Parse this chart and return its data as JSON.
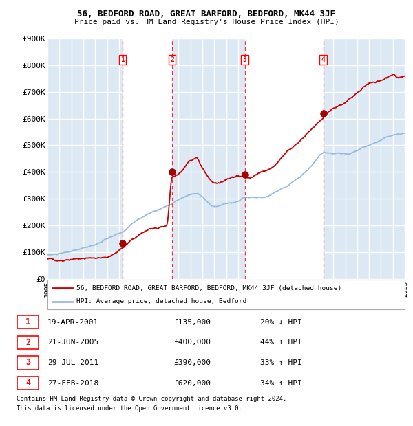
{
  "title": "56, BEDFORD ROAD, GREAT BARFORD, BEDFORD, MK44 3JF",
  "subtitle": "Price paid vs. HM Land Registry's House Price Index (HPI)",
  "x_start_year": 1995,
  "x_end_year": 2025,
  "y_min": 0,
  "y_max": 900000,
  "y_ticks": [
    0,
    100000,
    200000,
    300000,
    400000,
    500000,
    600000,
    700000,
    800000,
    900000
  ],
  "y_tick_labels": [
    "£0",
    "£100K",
    "£200K",
    "£300K",
    "£400K",
    "£500K",
    "£600K",
    "£700K",
    "£800K",
    "£900K"
  ],
  "sale_color": "#cc0000",
  "hpi_color": "#99bbdd",
  "band_color": "#dce9f5",
  "grid_color": "#ffffff",
  "sale_points": [
    {
      "year": 2001.3,
      "price": 135000,
      "label": "1"
    },
    {
      "year": 2005.47,
      "price": 400000,
      "label": "2"
    },
    {
      "year": 2011.57,
      "price": 390000,
      "label": "3"
    },
    {
      "year": 2018.16,
      "price": 620000,
      "label": "4"
    }
  ],
  "vline_years": [
    2001.3,
    2005.47,
    2011.57,
    2018.16
  ],
  "legend_entries": [
    "56, BEDFORD ROAD, GREAT BARFORD, BEDFORD, MK44 3JF (detached house)",
    "HPI: Average price, detached house, Bedford"
  ],
  "table_rows": [
    {
      "num": "1",
      "date": "19-APR-2001",
      "price": "£135,000",
      "hpi": "20% ↓ HPI"
    },
    {
      "num": "2",
      "date": "21-JUN-2005",
      "price": "£400,000",
      "hpi": "44% ↑ HPI"
    },
    {
      "num": "3",
      "date": "29-JUL-2011",
      "price": "£390,000",
      "hpi": "33% ↑ HPI"
    },
    {
      "num": "4",
      "date": "27-FEB-2018",
      "price": "£620,000",
      "hpi": "34% ↑ HPI"
    }
  ],
  "footnote1": "Contains HM Land Registry data © Crown copyright and database right 2024.",
  "footnote2": "This data is licensed under the Open Government Licence v3.0.",
  "hpi_keypoints": [
    [
      1995.0,
      90000
    ],
    [
      1996.0,
      93000
    ],
    [
      1997.0,
      100000
    ],
    [
      1998.0,
      110000
    ],
    [
      1999.0,
      125000
    ],
    [
      2000.0,
      145000
    ],
    [
      2001.3,
      168000
    ],
    [
      2002.0,
      195000
    ],
    [
      2003.0,
      225000
    ],
    [
      2004.0,
      248000
    ],
    [
      2005.47,
      277000
    ],
    [
      2006.0,
      290000
    ],
    [
      2007.0,
      305000
    ],
    [
      2007.5,
      310000
    ],
    [
      2008.0,
      295000
    ],
    [
      2009.0,
      258000
    ],
    [
      2010.0,
      270000
    ],
    [
      2011.0,
      280000
    ],
    [
      2011.57,
      293000
    ],
    [
      2012.0,
      295000
    ],
    [
      2013.0,
      295000
    ],
    [
      2014.0,
      310000
    ],
    [
      2015.0,
      340000
    ],
    [
      2016.0,
      370000
    ],
    [
      2017.0,
      410000
    ],
    [
      2018.16,
      461000
    ],
    [
      2019.0,
      455000
    ],
    [
      2020.0,
      455000
    ],
    [
      2021.0,
      470000
    ],
    [
      2022.0,
      490000
    ],
    [
      2023.0,
      510000
    ],
    [
      2024.0,
      530000
    ],
    [
      2025.0,
      540000
    ]
  ],
  "sale_keypoints": [
    [
      1995.0,
      75000
    ],
    [
      1996.0,
      78000
    ],
    [
      1997.0,
      84000
    ],
    [
      1998.0,
      92000
    ],
    [
      1999.0,
      98000
    ],
    [
      2000.0,
      100000
    ],
    [
      2001.3,
      135000
    ],
    [
      2002.0,
      165000
    ],
    [
      2003.0,
      190000
    ],
    [
      2004.0,
      215000
    ],
    [
      2005.0,
      225000
    ],
    [
      2005.47,
      400000
    ],
    [
      2006.0,
      410000
    ],
    [
      2007.0,
      460000
    ],
    [
      2007.5,
      470000
    ],
    [
      2008.0,
      430000
    ],
    [
      2009.0,
      370000
    ],
    [
      2010.0,
      380000
    ],
    [
      2011.0,
      390000
    ],
    [
      2011.57,
      390000
    ],
    [
      2012.0,
      385000
    ],
    [
      2013.0,
      400000
    ],
    [
      2014.0,
      430000
    ],
    [
      2015.0,
      480000
    ],
    [
      2016.0,
      520000
    ],
    [
      2017.0,
      570000
    ],
    [
      2018.0,
      610000
    ],
    [
      2018.16,
      620000
    ],
    [
      2019.0,
      650000
    ],
    [
      2020.0,
      670000
    ],
    [
      2021.0,
      700000
    ],
    [
      2022.0,
      730000
    ],
    [
      2023.0,
      740000
    ],
    [
      2024.0,
      760000
    ],
    [
      2024.5,
      750000
    ],
    [
      2025.0,
      760000
    ]
  ]
}
